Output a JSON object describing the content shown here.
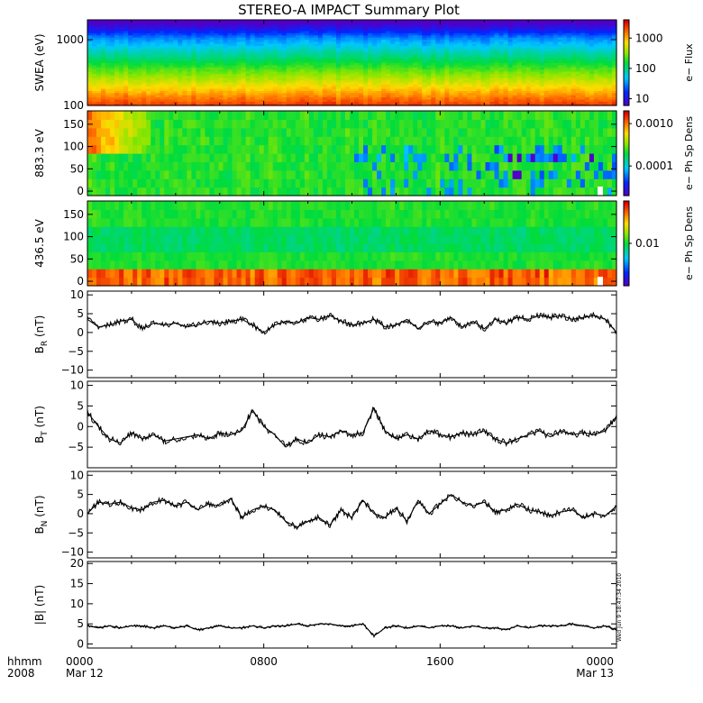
{
  "title": "STEREO-A IMPACT Summary Plot",
  "timestamp": "Wed Jun  9 18:47:34 2010",
  "x_axis": {
    "row1": "hhmm",
    "row2": "2008",
    "ticks": [
      {
        "hour": 0,
        "label": "0000",
        "date": "Mar 12"
      },
      {
        "hour": 8,
        "label": "0800",
        "date": ""
      },
      {
        "hour": 16,
        "label": "1600",
        "date": ""
      },
      {
        "hour": 24,
        "label": "0000",
        "date": "Mar 13"
      }
    ],
    "range_hours": [
      0,
      24
    ]
  },
  "chart_data": [
    {
      "type": "heatmap",
      "ylabel": "SWEA (eV)",
      "y_scale": "log",
      "ylim": [
        100,
        2000
      ],
      "yticks": [
        {
          "v": 100,
          "label": "100"
        },
        {
          "v": 1000,
          "label": "1000"
        }
      ],
      "colorbar": {
        "label": "e− Flux",
        "scale": "log",
        "range": [
          6,
          4000
        ],
        "ticks": [
          {
            "v": 10,
            "label": "10"
          },
          {
            "v": 100,
            "label": "100"
          },
          {
            "v": 1000,
            "label": "1000"
          }
        ]
      },
      "description_profile": "flux decreasing with energy: red near 100 eV, green ~400 eV, blue above 1000 eV"
    },
    {
      "type": "heatmap",
      "ylabel": "883.3 eV",
      "ylim": [
        -10,
        180
      ],
      "yticks": [
        {
          "v": 0,
          "label": "0"
        },
        {
          "v": 50,
          "label": "50"
        },
        {
          "v": 100,
          "label": "100"
        },
        {
          "v": 150,
          "label": "150"
        }
      ],
      "colorbar": {
        "label": "e− Ph Sp Dens",
        "scale": "log",
        "range": [
          2e-05,
          0.002
        ],
        "ticks": [
          {
            "v": 0.0001,
            "label": "0.0001"
          },
          {
            "v": 0.001,
            "label": "0.0010"
          }
        ]
      }
    },
    {
      "type": "heatmap",
      "ylabel": "436.5 eV",
      "ylim": [
        -10,
        180
      ],
      "yticks": [
        {
          "v": 0,
          "label": "0"
        },
        {
          "v": 50,
          "label": "50"
        },
        {
          "v": 100,
          "label": "100"
        },
        {
          "v": 150,
          "label": "150"
        }
      ],
      "colorbar": {
        "label": "e− Ph Sp Dens",
        "scale": "log",
        "range": [
          0.002,
          0.05
        ],
        "ticks": [
          {
            "v": 0.01,
            "label": "0.01"
          }
        ]
      }
    },
    {
      "type": "line",
      "ylabel_main": "B",
      "ylabel_sub": "R",
      "ylabel_unit": " (nT)",
      "ylim": [
        -12,
        11
      ],
      "yticks": [
        {
          "v": -10,
          "label": "−10"
        },
        {
          "v": -5,
          "label": "−5"
        },
        {
          "v": 0,
          "label": "0"
        },
        {
          "v": 5,
          "label": "5"
        },
        {
          "v": 10,
          "label": "10"
        }
      ],
      "x": [
        0,
        0.5,
        1,
        1.5,
        2,
        2.5,
        3,
        3.5,
        4,
        4.5,
        5,
        5.5,
        6,
        6.5,
        7,
        7.5,
        8,
        8.5,
        9,
        9.5,
        10,
        10.5,
        11,
        11.5,
        12,
        12.5,
        13,
        13.5,
        14,
        14.5,
        15,
        15.5,
        16,
        16.5,
        17,
        17.5,
        18,
        18.5,
        19,
        19.5,
        20,
        20.5,
        21,
        21.5,
        22,
        22.5,
        23,
        23.5,
        24
      ],
      "y": [
        3.5,
        1.5,
        2,
        3,
        3.5,
        1,
        2.5,
        2,
        2.5,
        1.5,
        2,
        3,
        2.5,
        3,
        3.5,
        2,
        0,
        2,
        3,
        2.5,
        4,
        3.5,
        4.5,
        3,
        2,
        2.5,
        3.5,
        1.5,
        2,
        3.5,
        1,
        3,
        2.5,
        4,
        1.5,
        3,
        1,
        3.5,
        2.5,
        4,
        3.5,
        4.5,
        4,
        4.5,
        3.5,
        4,
        4.5,
        3.5,
        0
      ]
    },
    {
      "type": "line",
      "ylabel_main": "B",
      "ylabel_sub": "T",
      "ylabel_unit": " (nT)",
      "ylim": [
        -10,
        11
      ],
      "yticks": [
        {
          "v": -5,
          "label": "−5"
        },
        {
          "v": 0,
          "label": "0"
        },
        {
          "v": 5,
          "label": "5"
        },
        {
          "v": 10,
          "label": "10"
        }
      ],
      "x": [
        0,
        0.5,
        1,
        1.5,
        2,
        2.5,
        3,
        3.5,
        4,
        4.5,
        5,
        5.5,
        6,
        6.5,
        7,
        7.5,
        8,
        8.5,
        9,
        9.5,
        10,
        10.5,
        11,
        11.5,
        12,
        12.5,
        13,
        13.5,
        14,
        14.5,
        15,
        15.5,
        16,
        16.5,
        17,
        17.5,
        18,
        18.5,
        19,
        19.5,
        20,
        20.5,
        21,
        21.5,
        22,
        22.5,
        23,
        23.5,
        24
      ],
      "y": [
        3.5,
        0,
        -3,
        -4,
        -1.5,
        -3,
        -2,
        -3.5,
        -3,
        -2.5,
        -2,
        -3,
        -1.5,
        -2,
        -1,
        4,
        0,
        -2,
        -5,
        -3,
        -4,
        -2,
        -2.5,
        -1,
        -2,
        -1.5,
        4.5,
        -1,
        -3,
        -2,
        -3,
        -1,
        -2,
        -2.5,
        -1.5,
        -2,
        -1,
        -3,
        -4,
        -3,
        -2,
        -1,
        -2.5,
        -1,
        -2,
        -1.5,
        -2,
        -1,
        2.5
      ]
    },
    {
      "type": "line",
      "ylabel_main": "B",
      "ylabel_sub": "N",
      "ylabel_unit": " (nT)",
      "ylim": [
        -11.5,
        11
      ],
      "yticks": [
        {
          "v": -10,
          "label": "−10"
        },
        {
          "v": -5,
          "label": "−5"
        },
        {
          "v": 0,
          "label": "0"
        },
        {
          "v": 5,
          "label": "5"
        },
        {
          "v": 10,
          "label": "10"
        }
      ],
      "x": [
        0,
        0.5,
        1,
        1.5,
        2,
        2.5,
        3,
        3.5,
        4,
        4.5,
        5,
        5.5,
        6,
        6.5,
        7,
        7.5,
        8,
        8.5,
        9,
        9.5,
        10,
        10.5,
        11,
        11.5,
        12,
        12.5,
        13,
        13.5,
        14,
        14.5,
        15,
        15.5,
        16,
        16.5,
        17,
        17.5,
        18,
        18.5,
        19,
        19.5,
        20,
        20.5,
        21,
        21.5,
        22,
        22.5,
        23,
        23.5,
        24
      ],
      "y": [
        0,
        3,
        2.5,
        3,
        1.5,
        1,
        3,
        3.5,
        2,
        3,
        1,
        2.5,
        2,
        4,
        -1,
        1,
        2,
        1,
        -2,
        -3.5,
        -2,
        -1,
        -3,
        1,
        -1,
        3.5,
        0,
        -1,
        1.5,
        -2,
        3.5,
        0,
        2.5,
        5,
        3,
        2,
        3,
        0.5,
        1,
        2.5,
        1,
        0.5,
        -0.5,
        0.5,
        1,
        -1,
        0,
        -0.5,
        2
      ]
    },
    {
      "type": "line",
      "ylabel_main": "|B|",
      "ylabel_sub": "",
      "ylabel_unit": " (nT)",
      "ylim": [
        -1,
        20.5
      ],
      "yticks": [
        {
          "v": 0,
          "label": "0"
        },
        {
          "v": 5,
          "label": "5"
        },
        {
          "v": 10,
          "label": "10"
        },
        {
          "v": 15,
          "label": "15"
        },
        {
          "v": 20,
          "label": "20"
        }
      ],
      "x": [
        0,
        0.5,
        1,
        1.5,
        2,
        2.5,
        3,
        3.5,
        4,
        4.5,
        5,
        5.5,
        6,
        6.5,
        7,
        7.5,
        8,
        8.5,
        9,
        9.5,
        10,
        10.5,
        11,
        11.5,
        12,
        12.5,
        13,
        13.5,
        14,
        14.5,
        15,
        15.5,
        16,
        16.5,
        17,
        17.5,
        18,
        18.5,
        19,
        19.5,
        20,
        20.5,
        21,
        21.5,
        22,
        22.5,
        23,
        23.5,
        24
      ],
      "y": [
        4.5,
        4,
        4.5,
        4,
        4.5,
        4.5,
        4,
        4.5,
        4,
        4.5,
        3.5,
        4,
        4.5,
        4,
        4,
        4.5,
        4,
        4.5,
        4.5,
        5,
        4.5,
        5,
        5,
        4.5,
        4.5,
        5,
        2,
        4,
        4.5,
        4,
        4.5,
        4,
        4.5,
        4.5,
        4,
        4.5,
        4,
        4,
        3.5,
        4.5,
        4,
        4.5,
        4.5,
        4.5,
        5,
        4.5,
        4,
        4.5,
        3.5
      ]
    }
  ]
}
